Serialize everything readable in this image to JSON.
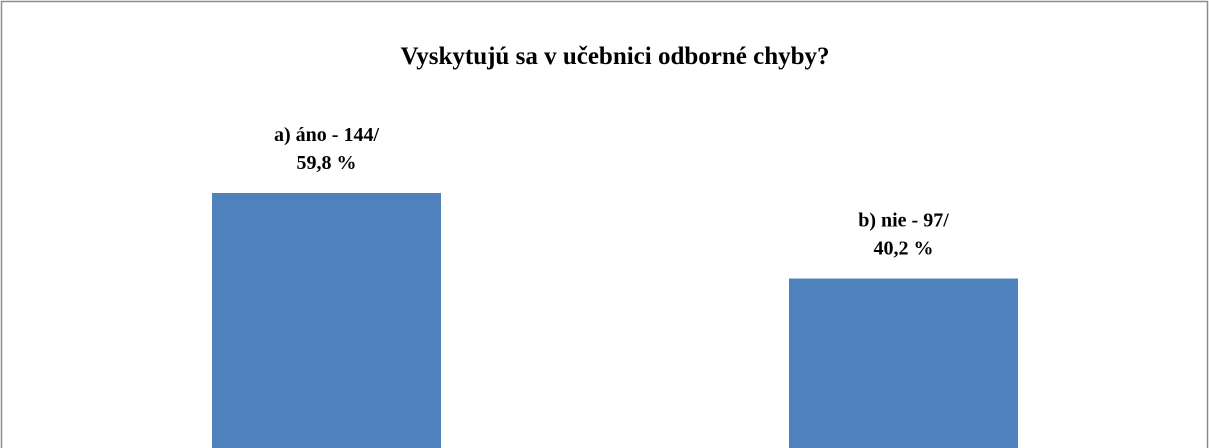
{
  "chart_data": {
    "type": "bar",
    "title": "Vyskytujú sa v učebnici odborné chyby?",
    "values": [
      144,
      97
    ],
    "value_labels": [
      [
        "a) áno - 144/",
        "59,8 %"
      ],
      [
        "b) nie - 97/",
        "40,2 %"
      ]
    ],
    "color": "#4f81bd"
  }
}
